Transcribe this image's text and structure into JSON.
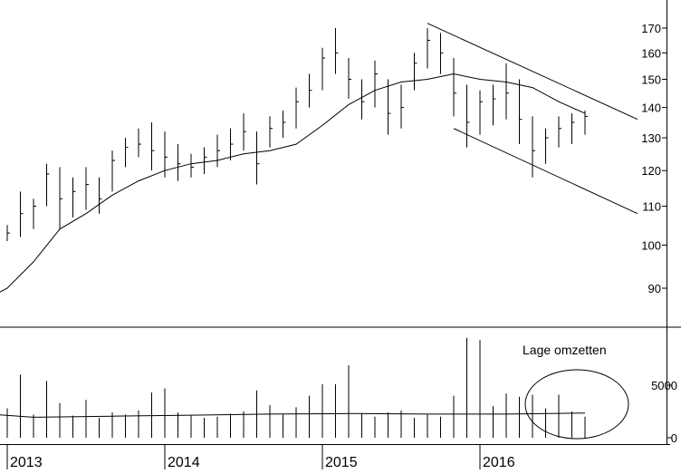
{
  "chart_data": {
    "type": "line",
    "subtype": "ohlc-weekly-with-volume",
    "title": "",
    "xlabel": "",
    "ylabel": "",
    "grid": false,
    "x_ticks": [
      "2013",
      "2014",
      "2015",
      "2016"
    ],
    "price_panel": {
      "scale": "log",
      "ylim": [
        82,
        177
      ],
      "y_ticks": [
        90,
        100,
        110,
        120,
        130,
        140,
        150,
        160,
        170
      ],
      "moving_average": [
        {
          "date": "2012-11",
          "value": 87
        },
        {
          "date": "2013-01",
          "value": 90
        },
        {
          "date": "2013-03",
          "value": 96
        },
        {
          "date": "2013-05",
          "value": 104
        },
        {
          "date": "2013-07",
          "value": 108
        },
        {
          "date": "2013-09",
          "value": 113
        },
        {
          "date": "2013-11",
          "value": 117
        },
        {
          "date": "2014-01",
          "value": 120
        },
        {
          "date": "2014-03",
          "value": 122
        },
        {
          "date": "2014-05",
          "value": 123
        },
        {
          "date": "2014-07",
          "value": 125
        },
        {
          "date": "2014-09",
          "value": 126
        },
        {
          "date": "2014-11",
          "value": 128
        },
        {
          "date": "2015-01",
          "value": 134
        },
        {
          "date": "2015-03",
          "value": 141
        },
        {
          "date": "2015-05",
          "value": 146
        },
        {
          "date": "2015-07",
          "value": 149
        },
        {
          "date": "2015-09",
          "value": 150
        },
        {
          "date": "2015-11",
          "value": 152
        },
        {
          "date": "2016-01",
          "value": 150
        },
        {
          "date": "2016-03",
          "value": 149
        },
        {
          "date": "2016-05",
          "value": 147
        },
        {
          "date": "2016-07",
          "value": 142
        },
        {
          "date": "2016-09",
          "value": 138
        }
      ],
      "bars": [
        {
          "date": "2012-11",
          "high": 106,
          "low": 103,
          "close": 104
        },
        {
          "date": "2012-12",
          "high": 108,
          "low": 102,
          "close": 105
        },
        {
          "date": "2013-01",
          "high": 105,
          "low": 101,
          "close": 103
        },
        {
          "date": "2013-02",
          "high": 114,
          "low": 102,
          "close": 108
        },
        {
          "date": "2013-03",
          "high": 112,
          "low": 104,
          "close": 110
        },
        {
          "date": "2013-04",
          "high": 122,
          "low": 110,
          "close": 119
        },
        {
          "date": "2013-05",
          "high": 121,
          "low": 104,
          "close": 112
        },
        {
          "date": "2013-06",
          "high": 118,
          "low": 107,
          "close": 114
        },
        {
          "date": "2013-07",
          "high": 121,
          "low": 109,
          "close": 116
        },
        {
          "date": "2013-08",
          "high": 118,
          "low": 108,
          "close": 112
        },
        {
          "date": "2013-09",
          "high": 126,
          "low": 114,
          "close": 123
        },
        {
          "date": "2013-10",
          "high": 130,
          "low": 121,
          "close": 127
        },
        {
          "date": "2013-11",
          "high": 133,
          "low": 124,
          "close": 128
        },
        {
          "date": "2013-12",
          "high": 135,
          "low": 120,
          "close": 126
        },
        {
          "date": "2014-01",
          "high": 132,
          "low": 118,
          "close": 124
        },
        {
          "date": "2014-02",
          "high": 128,
          "low": 117,
          "close": 122
        },
        {
          "date": "2014-03",
          "high": 125,
          "low": 118,
          "close": 121
        },
        {
          "date": "2014-04",
          "high": 127,
          "low": 119,
          "close": 124
        },
        {
          "date": "2014-05",
          "high": 131,
          "low": 121,
          "close": 126
        },
        {
          "date": "2014-06",
          "high": 133,
          "low": 123,
          "close": 128
        },
        {
          "date": "2014-07",
          "high": 138,
          "low": 126,
          "close": 132
        },
        {
          "date": "2014-08",
          "high": 132,
          "low": 116,
          "close": 122
        },
        {
          "date": "2014-09",
          "high": 137,
          "low": 127,
          "close": 133
        },
        {
          "date": "2014-10",
          "high": 139,
          "low": 130,
          "close": 135
        },
        {
          "date": "2014-11",
          "high": 147,
          "low": 133,
          "close": 142
        },
        {
          "date": "2014-12",
          "high": 152,
          "low": 140,
          "close": 146
        },
        {
          "date": "2015-01",
          "high": 162,
          "low": 146,
          "close": 158
        },
        {
          "date": "2015-02",
          "high": 170,
          "low": 152,
          "close": 160
        },
        {
          "date": "2015-03",
          "high": 158,
          "low": 143,
          "close": 150
        },
        {
          "date": "2015-04",
          "high": 150,
          "low": 136,
          "close": 142
        },
        {
          "date": "2015-05",
          "high": 157,
          "low": 140,
          "close": 152
        },
        {
          "date": "2015-06",
          "high": 150,
          "low": 131,
          "close": 138
        },
        {
          "date": "2015-07",
          "high": 148,
          "low": 133,
          "close": 140
        },
        {
          "date": "2015-08",
          "high": 160,
          "low": 146,
          "close": 156
        },
        {
          "date": "2015-09",
          "high": 170,
          "low": 154,
          "close": 165
        },
        {
          "date": "2015-10",
          "high": 168,
          "low": 152,
          "close": 160
        },
        {
          "date": "2015-11",
          "high": 158,
          "low": 137,
          "close": 145
        },
        {
          "date": "2015-12",
          "high": 148,
          "low": 127,
          "close": 135
        },
        {
          "date": "2016-01",
          "high": 146,
          "low": 131,
          "close": 142
        },
        {
          "date": "2016-02",
          "high": 148,
          "low": 134,
          "close": 143
        },
        {
          "date": "2016-03",
          "high": 156,
          "low": 136,
          "close": 145
        },
        {
          "date": "2016-04",
          "high": 150,
          "low": 128,
          "close": 136
        },
        {
          "date": "2016-05",
          "high": 137,
          "low": 118,
          "close": 126
        },
        {
          "date": "2016-06",
          "high": 133,
          "low": 122,
          "close": 130
        },
        {
          "date": "2016-07",
          "high": 137,
          "low": 127,
          "close": 133
        },
        {
          "date": "2016-08",
          "high": 138,
          "low": 128,
          "close": 135
        },
        {
          "date": "2016-09",
          "high": 139,
          "low": 131,
          "close": 137
        }
      ],
      "trendlines": [
        {
          "from": {
            "date": "2015-09",
            "value": 172
          },
          "to": {
            "date": "2017-01",
            "value": 136
          }
        },
        {
          "from": {
            "date": "2015-11",
            "value": 133
          },
          "to": {
            "date": "2017-01",
            "value": 108
          }
        }
      ]
    },
    "volume_panel": {
      "ylim": [
        0,
        9800
      ],
      "y_ticks": [
        0,
        5000
      ],
      "annotation": "Lage omzetten",
      "average": [
        {
          "date": "2012-11",
          "value": 2300
        },
        {
          "date": "2013-03",
          "value": 1950
        },
        {
          "date": "2013-09",
          "value": 2050
        },
        {
          "date": "2014-03",
          "value": 2150
        },
        {
          "date": "2014-09",
          "value": 2250
        },
        {
          "date": "2015-03",
          "value": 2300
        },
        {
          "date": "2015-09",
          "value": 2250
        },
        {
          "date": "2016-03",
          "value": 2250
        },
        {
          "date": "2016-09",
          "value": 2350
        }
      ],
      "bars": [
        {
          "date": "2012-11",
          "value": 2400
        },
        {
          "date": "2012-12",
          "value": 2100
        },
        {
          "date": "2013-01",
          "value": 2800
        },
        {
          "date": "2013-02",
          "value": 6000
        },
        {
          "date": "2013-03",
          "value": 2200
        },
        {
          "date": "2013-04",
          "value": 5400
        },
        {
          "date": "2013-05",
          "value": 3300
        },
        {
          "date": "2013-06",
          "value": 2100
        },
        {
          "date": "2013-07",
          "value": 3600
        },
        {
          "date": "2013-08",
          "value": 1900
        },
        {
          "date": "2013-09",
          "value": 2400
        },
        {
          "date": "2013-10",
          "value": 2200
        },
        {
          "date": "2013-11",
          "value": 2600
        },
        {
          "date": "2013-12",
          "value": 4300
        },
        {
          "date": "2014-01",
          "value": 4700
        },
        {
          "date": "2014-02",
          "value": 2400
        },
        {
          "date": "2014-03",
          "value": 2100
        },
        {
          "date": "2014-04",
          "value": 1900
        },
        {
          "date": "2014-05",
          "value": 2000
        },
        {
          "date": "2014-06",
          "value": 2300
        },
        {
          "date": "2014-07",
          "value": 2500
        },
        {
          "date": "2014-08",
          "value": 4500
        },
        {
          "date": "2014-09",
          "value": 3100
        },
        {
          "date": "2014-10",
          "value": 2200
        },
        {
          "date": "2014-11",
          "value": 2900
        },
        {
          "date": "2014-12",
          "value": 4000
        },
        {
          "date": "2015-01",
          "value": 5100
        },
        {
          "date": "2015-02",
          "value": 5100
        },
        {
          "date": "2015-03",
          "value": 6900
        },
        {
          "date": "2015-04",
          "value": 2300
        },
        {
          "date": "2015-05",
          "value": 2000
        },
        {
          "date": "2015-06",
          "value": 2400
        },
        {
          "date": "2015-07",
          "value": 2600
        },
        {
          "date": "2015-08",
          "value": 1900
        },
        {
          "date": "2015-09",
          "value": 2200
        },
        {
          "date": "2015-10",
          "value": 2000
        },
        {
          "date": "2015-11",
          "value": 4000
        },
        {
          "date": "2015-12",
          "value": 9500
        },
        {
          "date": "2016-01",
          "value": 9300
        },
        {
          "date": "2016-02",
          "value": 3000
        },
        {
          "date": "2016-03",
          "value": 4200
        },
        {
          "date": "2016-04",
          "value": 3900
        },
        {
          "date": "2016-05",
          "value": 4100
        },
        {
          "date": "2016-06",
          "value": 2800
        },
        {
          "date": "2016-07",
          "value": 4100
        },
        {
          "date": "2016-08",
          "value": 2500
        },
        {
          "date": "2016-09",
          "value": 2000
        }
      ]
    }
  }
}
